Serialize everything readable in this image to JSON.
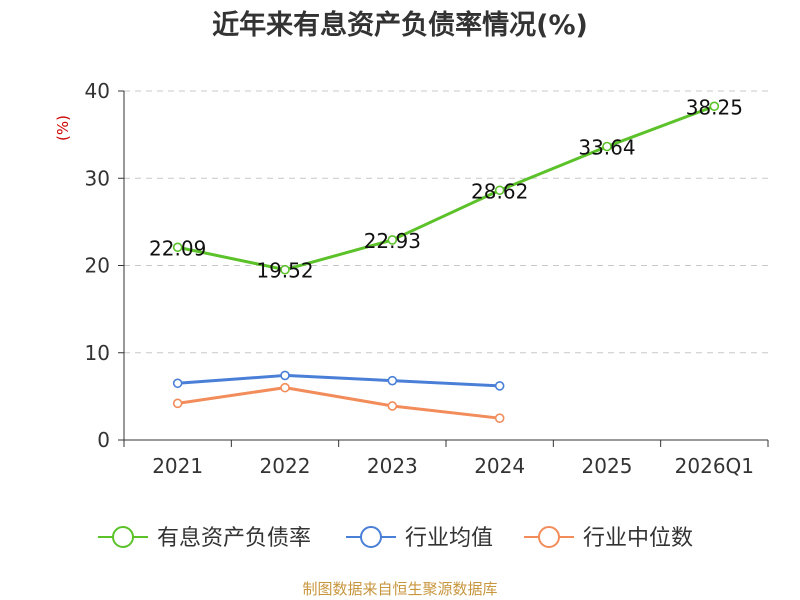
{
  "chart_data": {
    "type": "line",
    "title": "近年来有息资产负债率情况(%)",
    "ylabel": "(%)",
    "xlabel": "",
    "categories": [
      "2021",
      "2022",
      "2023",
      "2024",
      "2025",
      "2026Q1"
    ],
    "ylim": [
      0,
      40
    ],
    "yticks": [
      "0",
      "10",
      "20",
      "30",
      "40"
    ],
    "grid": true,
    "legend_position": "bottom",
    "series": [
      {
        "name": "有息资产负债率",
        "color": "#5cc22a",
        "values": [
          22.09,
          19.52,
          22.93,
          28.62,
          33.64,
          38.25
        ],
        "labels": [
          "22.09",
          "19.52",
          "22.93",
          "28.62",
          "33.64",
          "38.25"
        ]
      },
      {
        "name": "行业均值",
        "color": "#4a7fd8",
        "values": [
          6.5,
          7.4,
          6.8,
          6.2,
          null,
          null
        ]
      },
      {
        "name": "行业中位数",
        "color": "#f28c5a",
        "values": [
          4.2,
          6.0,
          3.9,
          2.5,
          null,
          null
        ]
      }
    ],
    "source": "制图数据来自恒生聚源数据库"
  }
}
